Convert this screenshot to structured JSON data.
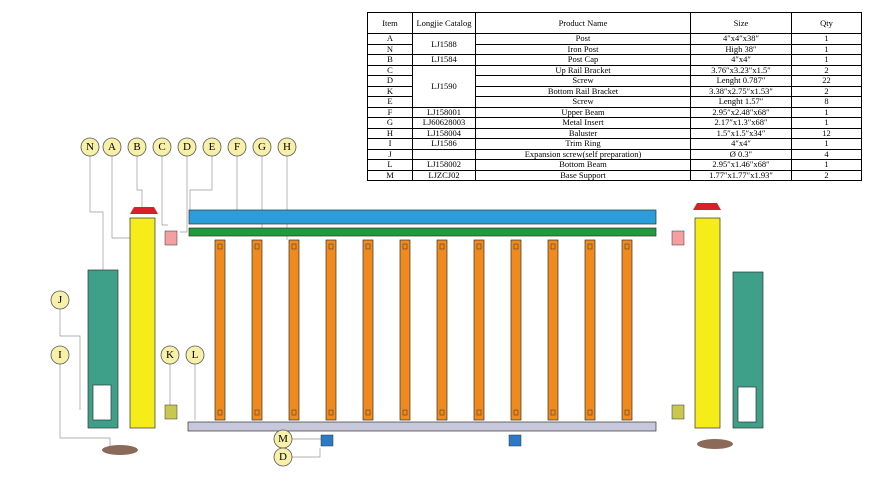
{
  "table": {
    "headers": [
      "Item",
      "Longjie Catalog",
      "Product Name",
      "Size",
      "Qty"
    ],
    "rows": [
      {
        "item": "A",
        "catalog": "LJ1588",
        "name": "Post",
        "size": "4″x4″x38″",
        "qty": 1
      },
      {
        "item": "N",
        "name": "Iron Post",
        "size": "High 38″",
        "qty": 1
      },
      {
        "item": "B",
        "catalog": "LJ1584",
        "name": "Post Cap",
        "size": "4″x4″",
        "qty": 1
      },
      {
        "item": "C",
        "catalog": "LJ1590",
        "name": "Up Rail Bracket",
        "size": "3.76″x3.23″x1.5″",
        "qty": 2
      },
      {
        "item": "D",
        "name": "Screw",
        "size": "Lenght 0.787″",
        "qty": 22
      },
      {
        "item": "K",
        "name": "Bottom Rail Bracket",
        "size": "3.38″x2.75″x1.53″",
        "qty": 2
      },
      {
        "item": "E",
        "name": "Screw",
        "size": "Lenght 1.57″",
        "qty": 8
      },
      {
        "item": "F",
        "catalog": "LJ158001",
        "name": "Upper Beam",
        "size": "2.95″x2.48″x68″",
        "qty": 1
      },
      {
        "item": "G",
        "catalog": "LJ60628003",
        "name": "Metal Insert",
        "size": "2.17″x1.3″x68″",
        "qty": 1
      },
      {
        "item": "H",
        "catalog": "LJ158004",
        "name": "Baluster",
        "size": "1.5″x1.5″x34″",
        "qty": 12
      },
      {
        "item": "I",
        "catalog": "LJ1586",
        "name": "Trim Ring",
        "size": "4″x4″",
        "qty": 1
      },
      {
        "item": "J",
        "name": "Expansion screw(self preparation)",
        "size": "Ø 0.3″",
        "qty": 4
      },
      {
        "item": "L",
        "catalog": "LJ158002",
        "name": "Bottom Beam",
        "size": "2.95″x1.46″x68″",
        "qty": 1
      },
      {
        "item": "M",
        "catalog": "LJZCJ02",
        "name": "Base Support",
        "size": "1.77″x1.77″x1.93″",
        "qty": 2
      }
    ]
  },
  "callouts": [
    "N",
    "A",
    "B",
    "C",
    "D",
    "E",
    "F",
    "G",
    "H",
    "J",
    "I",
    "K",
    "L",
    "M",
    "D"
  ]
}
